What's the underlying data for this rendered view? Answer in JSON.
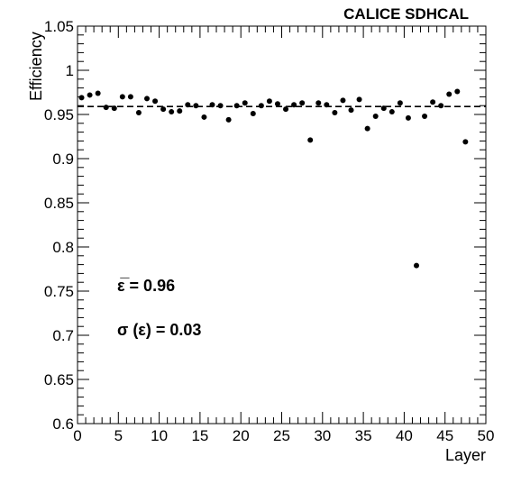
{
  "chart_data": {
    "type": "scatter",
    "title": "CALICE SDHCAL",
    "xlabel": "Layer",
    "ylabel": "Efficiency",
    "xlim": [
      0,
      50
    ],
    "ylim": [
      0.6,
      1.05
    ],
    "x_ticks": [
      "0",
      "5",
      "10",
      "15",
      "20",
      "25",
      "30",
      "35",
      "40",
      "45",
      "50"
    ],
    "y_ticks": [
      "0.6",
      "0.65",
      "0.7",
      "0.75",
      "0.8",
      "0.85",
      "0.9",
      "0.95",
      "1",
      "1.05"
    ],
    "reference_line": {
      "y": 0.959,
      "style": "dashed"
    },
    "x": [
      0.5,
      1.5,
      2.5,
      3.5,
      4.5,
      5.5,
      6.5,
      7.5,
      8.5,
      9.5,
      10.5,
      11.5,
      12.5,
      13.5,
      14.5,
      15.5,
      16.5,
      17.5,
      18.5,
      19.5,
      20.5,
      21.5,
      22.5,
      23.5,
      24.5,
      25.5,
      26.5,
      27.5,
      28.5,
      29.5,
      30.5,
      31.5,
      32.5,
      33.5,
      34.5,
      35.5,
      36.5,
      37.5,
      38.5,
      39.5,
      40.5,
      41.5,
      42.5,
      43.5,
      44.5,
      45.5,
      46.5,
      47.5
    ],
    "y": [
      0.969,
      0.972,
      0.974,
      0.958,
      0.957,
      0.97,
      0.97,
      0.952,
      0.968,
      0.965,
      0.956,
      0.953,
      0.954,
      0.961,
      0.96,
      0.947,
      0.961,
      0.96,
      0.944,
      0.96,
      0.963,
      0.951,
      0.96,
      0.965,
      0.962,
      0.956,
      0.961,
      0.963,
      0.921,
      0.963,
      0.961,
      0.952,
      0.966,
      0.955,
      0.967,
      0.934,
      0.948,
      0.957,
      0.953,
      0.963,
      0.946,
      0.779,
      0.948,
      0.964,
      0.96,
      0.973,
      0.976,
      0.919
    ],
    "annotations": [
      {
        "label": "ε̅ = 0.96"
      },
      {
        "label": "σ (ε) = 0.03"
      }
    ]
  }
}
